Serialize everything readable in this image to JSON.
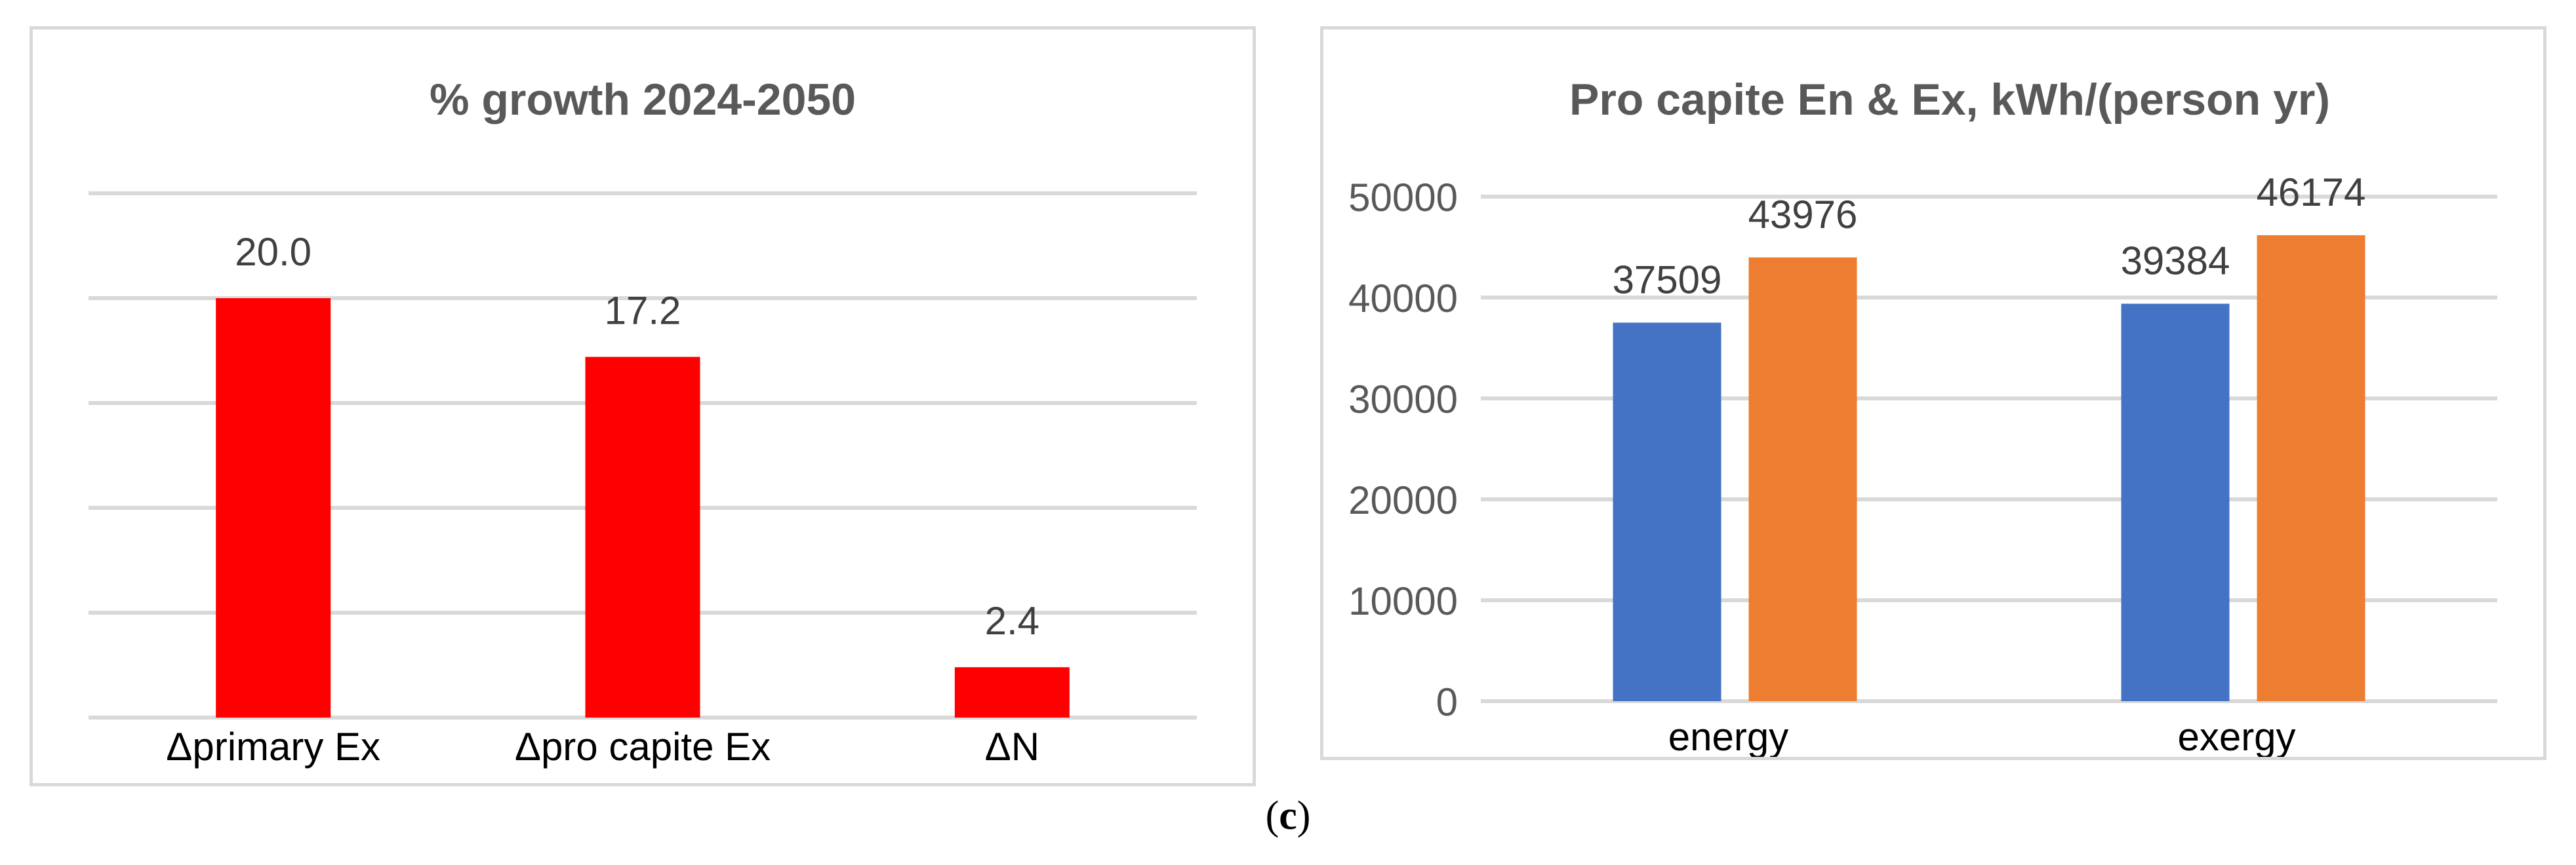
{
  "chart_data": [
    {
      "type": "bar",
      "title": "% growth 2024-2050",
      "categories": [
        "Δprimary Ex",
        "Δpro capite Ex",
        "ΔN"
      ],
      "series": [
        {
          "values": [
            20.0,
            17.2,
            2.4
          ],
          "color": "#ff0000"
        }
      ],
      "data_labels": [
        "20.0",
        "17.2",
        "2.4"
      ],
      "ylim": [
        0,
        25
      ],
      "y_tick_labels_shown": false,
      "grid": true,
      "legend": "none"
    },
    {
      "type": "bar",
      "title": "Pro capite En & Ex, kWh/(person yr)",
      "categories": [
        "energy",
        "exergy"
      ],
      "series": [
        {
          "values": [
            37509,
            39384
          ],
          "color": "#4472c4"
        },
        {
          "values": [
            43976,
            46174
          ],
          "color": "#ed7d31"
        }
      ],
      "ylim": [
        0,
        50000
      ],
      "y_ticks": [
        0,
        10000,
        20000,
        30000,
        40000,
        50000
      ],
      "grid": true,
      "legend": "none"
    }
  ],
  "caption": {
    "open": "(",
    "letter": "c",
    "close": ")"
  }
}
